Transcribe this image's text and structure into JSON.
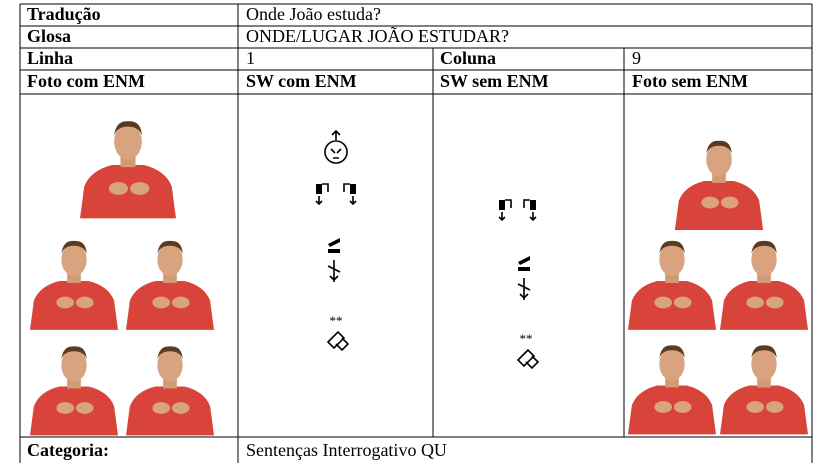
{
  "rows": [
    {
      "label": "Tradução",
      "value": "Onde João estuda?"
    },
    {
      "label": "Glosa",
      "value": "ONDE/LUGAR JOÃO ESTUDAR?"
    }
  ],
  "position": [
    {
      "label": "Linha",
      "value": "1"
    },
    {
      "label": "Coluna",
      "value": "9"
    }
  ],
  "headers": [
    "Foto com ENM",
    "SW com ENM",
    "SW sem ENM",
    "Foto sem ENM"
  ],
  "categoria": {
    "label": "Categoria:",
    "value": "Sentenças Interrogativo QU"
  }
}
